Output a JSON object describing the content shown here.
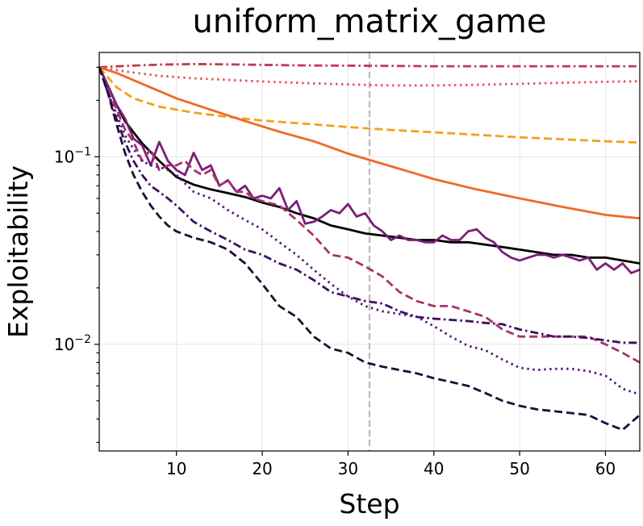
{
  "chart_data": {
    "type": "line",
    "title": "uniform_matrix_game",
    "xlabel": "Step",
    "ylabel": "Exploitability",
    "xlim": [
      1,
      64
    ],
    "ylim": [
      0.0027,
      0.36
    ],
    "yscale": "log",
    "grid": true,
    "x_ticks": [
      10,
      20,
      30,
      40,
      50,
      60
    ],
    "y_ticks": [
      {
        "value": 0.1,
        "base": "10",
        "exp": "−1"
      },
      {
        "value": 0.01,
        "base": "10",
        "exp": "−2"
      }
    ],
    "annotations": [
      {
        "type": "vline",
        "x": 32.5,
        "color": "#bbbbbb",
        "dash": "dashed"
      }
    ],
    "series": [
      {
        "color": "#c03a50",
        "dash": "dashdot",
        "x": [
          1,
          4,
          8,
          12,
          16,
          20,
          25,
          30,
          35,
          40,
          45,
          50,
          55,
          60,
          64
        ],
        "values": [
          0.3,
          0.305,
          0.31,
          0.312,
          0.311,
          0.309,
          0.307,
          0.306,
          0.305,
          0.304,
          0.304,
          0.304,
          0.304,
          0.304,
          0.304
        ]
      },
      {
        "color": "#e8535a",
        "dash": "dotted",
        "x": [
          1,
          4,
          8,
          12,
          16,
          20,
          25,
          30,
          35,
          40,
          45,
          50,
          55,
          60,
          64
        ],
        "values": [
          0.3,
          0.285,
          0.27,
          0.262,
          0.257,
          0.252,
          0.247,
          0.243,
          0.24,
          0.24,
          0.242,
          0.245,
          0.248,
          0.251,
          0.253
        ]
      },
      {
        "color": "#f5a01a",
        "dash": "dashed",
        "x": [
          1,
          3,
          5,
          8,
          12,
          16,
          20,
          25,
          30,
          35,
          40,
          45,
          50,
          55,
          60,
          64
        ],
        "values": [
          0.3,
          0.235,
          0.205,
          0.185,
          0.172,
          0.163,
          0.156,
          0.15,
          0.144,
          0.139,
          0.135,
          0.131,
          0.127,
          0.124,
          0.121,
          0.119
        ]
      },
      {
        "color": "#ee6a24",
        "dash": "solid",
        "x": [
          1,
          3,
          6,
          10,
          14,
          18,
          22,
          26,
          30,
          35,
          40,
          45,
          50,
          55,
          60,
          64
        ],
        "values": [
          0.3,
          0.28,
          0.245,
          0.205,
          0.178,
          0.155,
          0.136,
          0.121,
          0.104,
          0.089,
          0.076,
          0.067,
          0.06,
          0.054,
          0.049,
          0.047
        ]
      },
      {
        "color": "#000000",
        "dash": "solid",
        "x": [
          1,
          2,
          3,
          4,
          5,
          6,
          8,
          10,
          12,
          14,
          16,
          18,
          20,
          22,
          24,
          26,
          28,
          30,
          32,
          34,
          36,
          38,
          40,
          42,
          44,
          46,
          48,
          50,
          52,
          54,
          56,
          58,
          60,
          62,
          64
        ],
        "values": [
          0.3,
          0.24,
          0.19,
          0.155,
          0.135,
          0.118,
          0.095,
          0.078,
          0.071,
          0.067,
          0.064,
          0.061,
          0.057,
          0.054,
          0.05,
          0.047,
          0.043,
          0.041,
          0.039,
          0.038,
          0.037,
          0.036,
          0.036,
          0.035,
          0.035,
          0.034,
          0.033,
          0.032,
          0.031,
          0.03,
          0.03,
          0.029,
          0.029,
          0.028,
          0.027
        ]
      },
      {
        "color": "#7a1e78",
        "dash": "solid",
        "x": [
          1,
          2,
          3,
          4,
          5,
          6,
          7,
          8,
          9,
          10,
          11,
          12,
          13,
          14,
          15,
          16,
          17,
          18,
          19,
          20,
          21,
          22,
          23,
          24,
          25,
          26,
          27,
          28,
          29,
          30,
          31,
          32,
          33,
          34,
          35,
          36,
          37,
          38,
          39,
          40,
          41,
          42,
          43,
          44,
          45,
          46,
          47,
          48,
          49,
          50,
          51,
          52,
          53,
          54,
          55,
          56,
          57,
          58,
          59,
          60,
          61,
          62,
          63,
          64
        ],
        "values": [
          0.3,
          0.24,
          0.19,
          0.16,
          0.125,
          0.115,
          0.09,
          0.12,
          0.095,
          0.085,
          0.08,
          0.105,
          0.085,
          0.09,
          0.07,
          0.075,
          0.065,
          0.07,
          0.06,
          0.062,
          0.06,
          0.068,
          0.052,
          0.058,
          0.044,
          0.045,
          0.048,
          0.052,
          0.05,
          0.056,
          0.048,
          0.05,
          0.043,
          0.04,
          0.036,
          0.038,
          0.036,
          0.036,
          0.035,
          0.035,
          0.038,
          0.036,
          0.036,
          0.04,
          0.041,
          0.037,
          0.035,
          0.031,
          0.029,
          0.028,
          0.029,
          0.03,
          0.03,
          0.029,
          0.03,
          0.029,
          0.028,
          0.029,
          0.025,
          0.027,
          0.025,
          0.027,
          0.024,
          0.025
        ]
      },
      {
        "color": "#a8326e",
        "dash": "dashed",
        "x": [
          1,
          2,
          3,
          4,
          5,
          6,
          7,
          8,
          9,
          10,
          11,
          12,
          13,
          14,
          15,
          16,
          17,
          18,
          19,
          20,
          22,
          24,
          26,
          28,
          30,
          32,
          34,
          36,
          38,
          40,
          42,
          44,
          46,
          48,
          50,
          52,
          54,
          56,
          58,
          60,
          62,
          64
        ],
        "values": [
          0.3,
          0.23,
          0.18,
          0.14,
          0.12,
          0.095,
          0.11,
          0.085,
          0.09,
          0.09,
          0.095,
          0.085,
          0.08,
          0.085,
          0.07,
          0.075,
          0.065,
          0.065,
          0.06,
          0.058,
          0.055,
          0.046,
          0.038,
          0.03,
          0.029,
          0.026,
          0.023,
          0.019,
          0.017,
          0.016,
          0.016,
          0.015,
          0.014,
          0.012,
          0.011,
          0.011,
          0.011,
          0.011,
          0.011,
          0.01,
          0.009,
          0.008
        ]
      },
      {
        "color": "#3d0f63",
        "dash": "dashdot",
        "x": [
          1,
          2,
          3,
          4,
          5,
          6,
          7,
          8,
          9,
          10,
          12,
          14,
          16,
          18,
          20,
          22,
          24,
          26,
          28,
          30,
          32,
          34,
          36,
          38,
          40,
          42,
          44,
          46,
          48,
          50,
          52,
          54,
          56,
          58,
          60,
          62,
          64
        ],
        "values": [
          0.3,
          0.22,
          0.16,
          0.12,
          0.095,
          0.08,
          0.07,
          0.065,
          0.06,
          0.055,
          0.045,
          0.04,
          0.036,
          0.032,
          0.03,
          0.027,
          0.025,
          0.022,
          0.019,
          0.018,
          0.017,
          0.0165,
          0.015,
          0.014,
          0.0137,
          0.0135,
          0.0133,
          0.013,
          0.0128,
          0.012,
          0.0115,
          0.011,
          0.011,
          0.0108,
          0.0105,
          0.0102,
          0.0102
        ]
      },
      {
        "color": "#5a1a7a",
        "dash": "dotted",
        "x": [
          1,
          2,
          3,
          4,
          5,
          6,
          7,
          8,
          9,
          10,
          12,
          14,
          16,
          18,
          20,
          22,
          24,
          26,
          28,
          30,
          32,
          34,
          36,
          38,
          40,
          42,
          44,
          46,
          48,
          50,
          52,
          54,
          56,
          58,
          60,
          62,
          64
        ],
        "values": [
          0.3,
          0.22,
          0.17,
          0.13,
          0.11,
          0.095,
          0.09,
          0.088,
          0.085,
          0.08,
          0.065,
          0.06,
          0.052,
          0.046,
          0.041,
          0.035,
          0.03,
          0.025,
          0.021,
          0.018,
          0.016,
          0.015,
          0.0145,
          0.014,
          0.0125,
          0.011,
          0.0098,
          0.0093,
          0.0083,
          0.0075,
          0.0073,
          0.0074,
          0.0074,
          0.0072,
          0.0068,
          0.0058,
          0.0054
        ]
      },
      {
        "color": "#1a1035",
        "dash": "dashed",
        "x": [
          1,
          2,
          3,
          4,
          5,
          6,
          7,
          8,
          9,
          10,
          12,
          14,
          16,
          18,
          20,
          22,
          24,
          26,
          28,
          30,
          32,
          34,
          36,
          38,
          40,
          42,
          44,
          46,
          48,
          50,
          52,
          54,
          56,
          58,
          60,
          62,
          64
        ],
        "values": [
          0.3,
          0.22,
          0.15,
          0.105,
          0.08,
          0.065,
          0.055,
          0.048,
          0.043,
          0.04,
          0.037,
          0.035,
          0.032,
          0.027,
          0.021,
          0.016,
          0.014,
          0.011,
          0.0095,
          0.009,
          0.008,
          0.0076,
          0.0073,
          0.007,
          0.0066,
          0.0063,
          0.006,
          0.0055,
          0.005,
          0.0047,
          0.0045,
          0.0044,
          0.0043,
          0.0042,
          0.0038,
          0.0035,
          0.0042
        ]
      }
    ]
  }
}
